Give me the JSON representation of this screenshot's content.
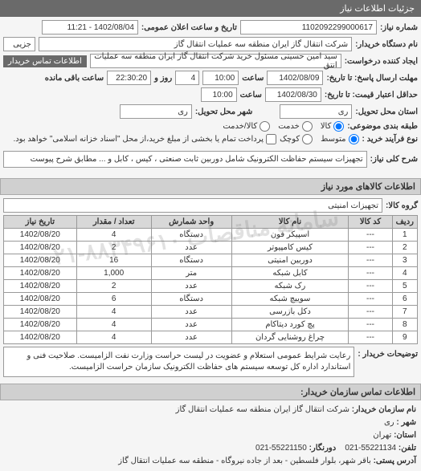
{
  "panel_title": "جزئیات اطلاعات نیاز",
  "header": {
    "req_no_label": "شماره نیاز:",
    "req_no": "1102092299000617",
    "announce_label": "تاریخ و ساعت اعلان عمومی:",
    "announce_value": "1402/08/04 - 11:21",
    "buyer_org_label": "نام دستگاه خریدار:",
    "buyer_org": "شرکت انتقال گاز ایران منطقه سه عملیات انتقال گاز",
    "partial_label": "جزیی",
    "creator_label": "ایجاد کننده درخواست:",
    "creator": "سید امین حسینی مسئول خرید شرکت انتقال گاز ایران منطقه سه عملیات انتق",
    "contact_btn": "اطلاعات تماس خریدار"
  },
  "deadlines": {
    "d1_label": "مهلت ارسال پاسخ: تا تاریخ:",
    "d1_date": "1402/08/09",
    "d1_time_label": "ساعت",
    "d1_time": "10:00",
    "d1_remain_days": "4",
    "d1_remain_time": "22:30:20",
    "d1_remain_lbl1": "روز و",
    "d1_remain_lbl2": "ساعت باقی مانده",
    "d2_label": "حداقل اعتبار قیمت: تا تاریخ:",
    "d2_date": "1402/08/30",
    "d2_time_label": "ساعت",
    "d2_time": "10:00"
  },
  "delivery": {
    "province_label": "استان محل تحویل:",
    "province": "ری",
    "city_label": "شهر محل تحویل:",
    "city": "ری"
  },
  "budget": {
    "label": "طبقه بندی موضوعی:",
    "opt1": "کالا",
    "opt2": "خدمت",
    "opt3": "کالا/خدمت",
    "selected": 0
  },
  "process": {
    "label": "نوع فرآیند خرید :",
    "opt1": "متوسط",
    "opt2": "کوچک",
    "selected": 0,
    "note": "پرداخت تمام یا بخشی از مبلغ خرید،از محل \"اسناد خزانه اسلامی\" خواهد بود."
  },
  "need": {
    "label": "شرح کلی نیاز:",
    "text": "تجهیزات سیستم حفاظت الکترونیک شامل دوربین ثابت صنعتی ، کیس ، کابل و ... مطابق شرح پیوست"
  },
  "goods": {
    "title": "اطلاعات کالاهای مورد نیاز",
    "group_label": "گروه کالا:",
    "group": "تجهیزات امنیتی",
    "columns": [
      "ردیف",
      "کد کالا",
      "نام کالا",
      "واحد شمارش",
      "تعداد / مقدار",
      "تاریخ نیاز"
    ],
    "rows": [
      [
        "1",
        "---",
        "اسپیکر فون",
        "دستگاه",
        "4",
        "1402/08/20"
      ],
      [
        "2",
        "---",
        "کیس کامپیوتر",
        "عدد",
        "2",
        "1402/08/20"
      ],
      [
        "3",
        "---",
        "دوربین امنیتی",
        "دستگاه",
        "16",
        "1402/08/20"
      ],
      [
        "4",
        "---",
        "کابل شبکه",
        "متر",
        "1,000",
        "1402/08/20"
      ],
      [
        "5",
        "---",
        "رک شبکه",
        "عدد",
        "2",
        "1402/08/20"
      ],
      [
        "6",
        "---",
        "سوییچ شبکه",
        "دستگاه",
        "6",
        "1402/08/20"
      ],
      [
        "7",
        "---",
        "دکل بازرسی",
        "عدد",
        "4",
        "1402/08/20"
      ],
      [
        "8",
        "---",
        "پچ کورد دیتاکام",
        "عدد",
        "4",
        "1402/08/20"
      ],
      [
        "9",
        "---",
        "چراغ روشنایی گردان",
        "عدد",
        "4",
        "1402/08/20"
      ]
    ]
  },
  "remarks": {
    "label": "توضیحات خریدار :",
    "text": "رعایت شرایط عمومی استعلام و عضویت در لیست حراست وزارت نفت الزامیست. صلاحیت فنی و استاندارد اداره کل توسعه سیستم های حفاظت الکترونیک سازمان حراست الزامیست."
  },
  "footer": {
    "title": "اطلاعات تماس سازمان خریدار:",
    "org_lbl": "نام سازمان خریدار:",
    "org": "شرکت انتقال گاز ایران منطقه سه عملیات انتقال گاز",
    "city_lbl": "شهر :",
    "city": "ری",
    "province_lbl": "استان:",
    "province": "تهران",
    "phone_lbl": "تلفن:",
    "phone": "55221134-021",
    "fax_lbl": "دورنگار:",
    "fax": "55221150-021",
    "addr_lbl": "آدرس پستی:",
    "addr": "باقر شهر، بلوار فلسطین - بعد از جاده نیروگاه - منطقه سه عملیات انتقال گاز"
  },
  "watermark": "سامانه مناقصات ۸۸۳۴۹۶۱۰-۰۲۱"
}
